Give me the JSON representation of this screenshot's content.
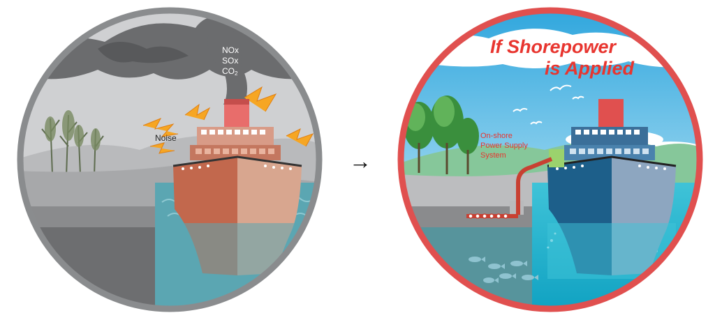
{
  "before": {
    "emissions": {
      "line1": "NOx",
      "line2": "SOx",
      "line3_base": "CO",
      "line3_sub": "2"
    },
    "noise_label": "Noise",
    "ring_color": "#8a8c8e"
  },
  "arrow_glyph": "→",
  "after": {
    "headline_line1": "If Shorepower",
    "headline_line2": "is Applied",
    "supply_label": {
      "line1": "On-shore",
      "line2": "Power Supply",
      "line3": "System"
    },
    "ring_color": "#e0504f",
    "accent_color": "#e8352f"
  }
}
